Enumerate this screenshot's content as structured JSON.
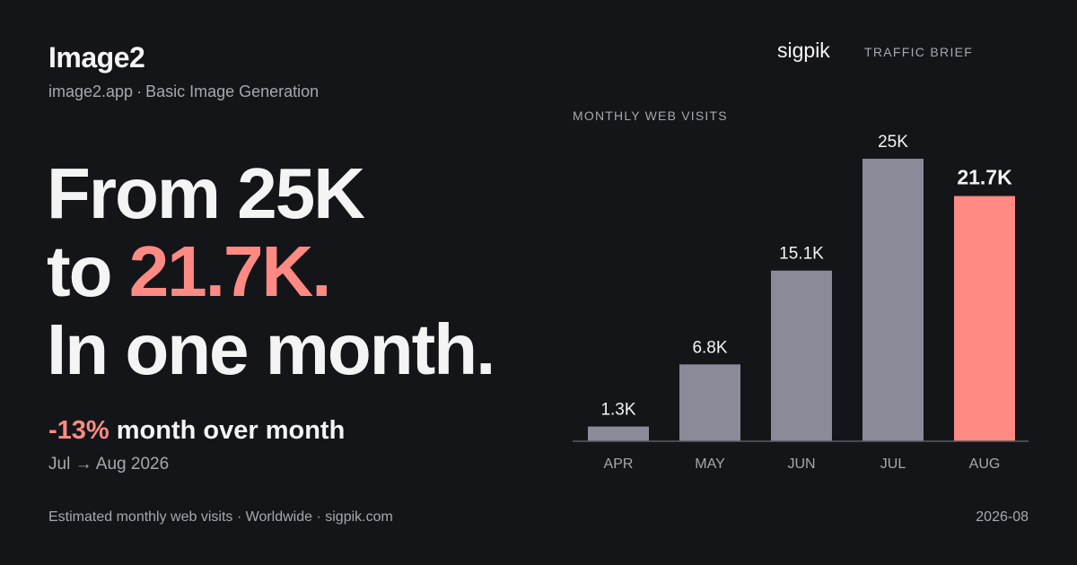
{
  "header": {
    "app_name": "Image2",
    "app_domain": "image2.app",
    "app_description": "Basic Image Generation",
    "brand": "sigpik",
    "brief": "TRAFFIC BRIEF"
  },
  "headline": {
    "line1": "From 25K",
    "line2_prefix": "to ",
    "line2_accent": "21.7K.",
    "line3": "In one month."
  },
  "delta": {
    "percent": "-13%",
    "text": " month over month",
    "range": "Jul → Aug 2026"
  },
  "footer": {
    "note": "Estimated monthly web visits · Worldwide · sigpik.com",
    "date": "2026-08"
  },
  "colors": {
    "background": "#141519",
    "bar": "#898c98",
    "highlight": "#ff8a83",
    "muted_text": "#a6a8ae",
    "baseline": "#5a5c63"
  },
  "chart_data": {
    "type": "bar",
    "title": "MONTHLY WEB VISITS",
    "categories": [
      "APR",
      "MAY",
      "JUN",
      "JUL",
      "AUG"
    ],
    "values": [
      1300,
      6800,
      15100,
      25000,
      21700
    ],
    "value_labels": [
      "1.3K",
      "6.8K",
      "15.1K",
      "25K",
      "21.7K"
    ],
    "highlight_index": 4,
    "ylim": [
      0,
      25000
    ],
    "grid": false,
    "legend": "none"
  }
}
